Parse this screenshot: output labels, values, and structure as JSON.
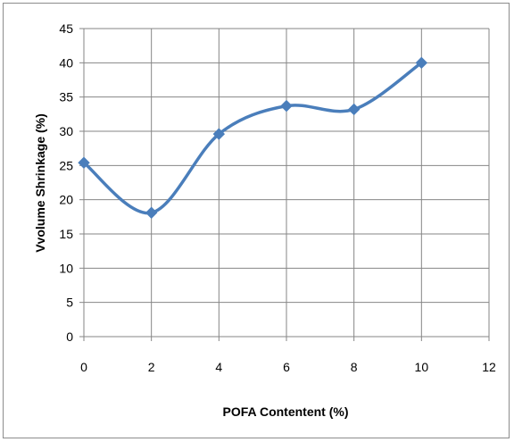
{
  "chart_data": {
    "type": "line",
    "smooth": true,
    "xlabel": "POFA Contentent (%)",
    "ylabel": "Vvolume Shrinkage (%)",
    "xlim": [
      0,
      12
    ],
    "ylim": [
      0,
      45
    ],
    "xticks": [
      0,
      2,
      4,
      6,
      8,
      10,
      12
    ],
    "yticks": [
      0,
      5,
      10,
      15,
      20,
      25,
      30,
      35,
      40,
      45
    ],
    "grid": true,
    "legend": "none",
    "series": [
      {
        "x": [
          0,
          2,
          4,
          6,
          8,
          10
        ],
        "y": [
          25.4,
          18.1,
          29.6,
          33.7,
          33.2,
          40.0
        ],
        "color": "#4a7ebb",
        "marker": "diamond"
      }
    ]
  }
}
